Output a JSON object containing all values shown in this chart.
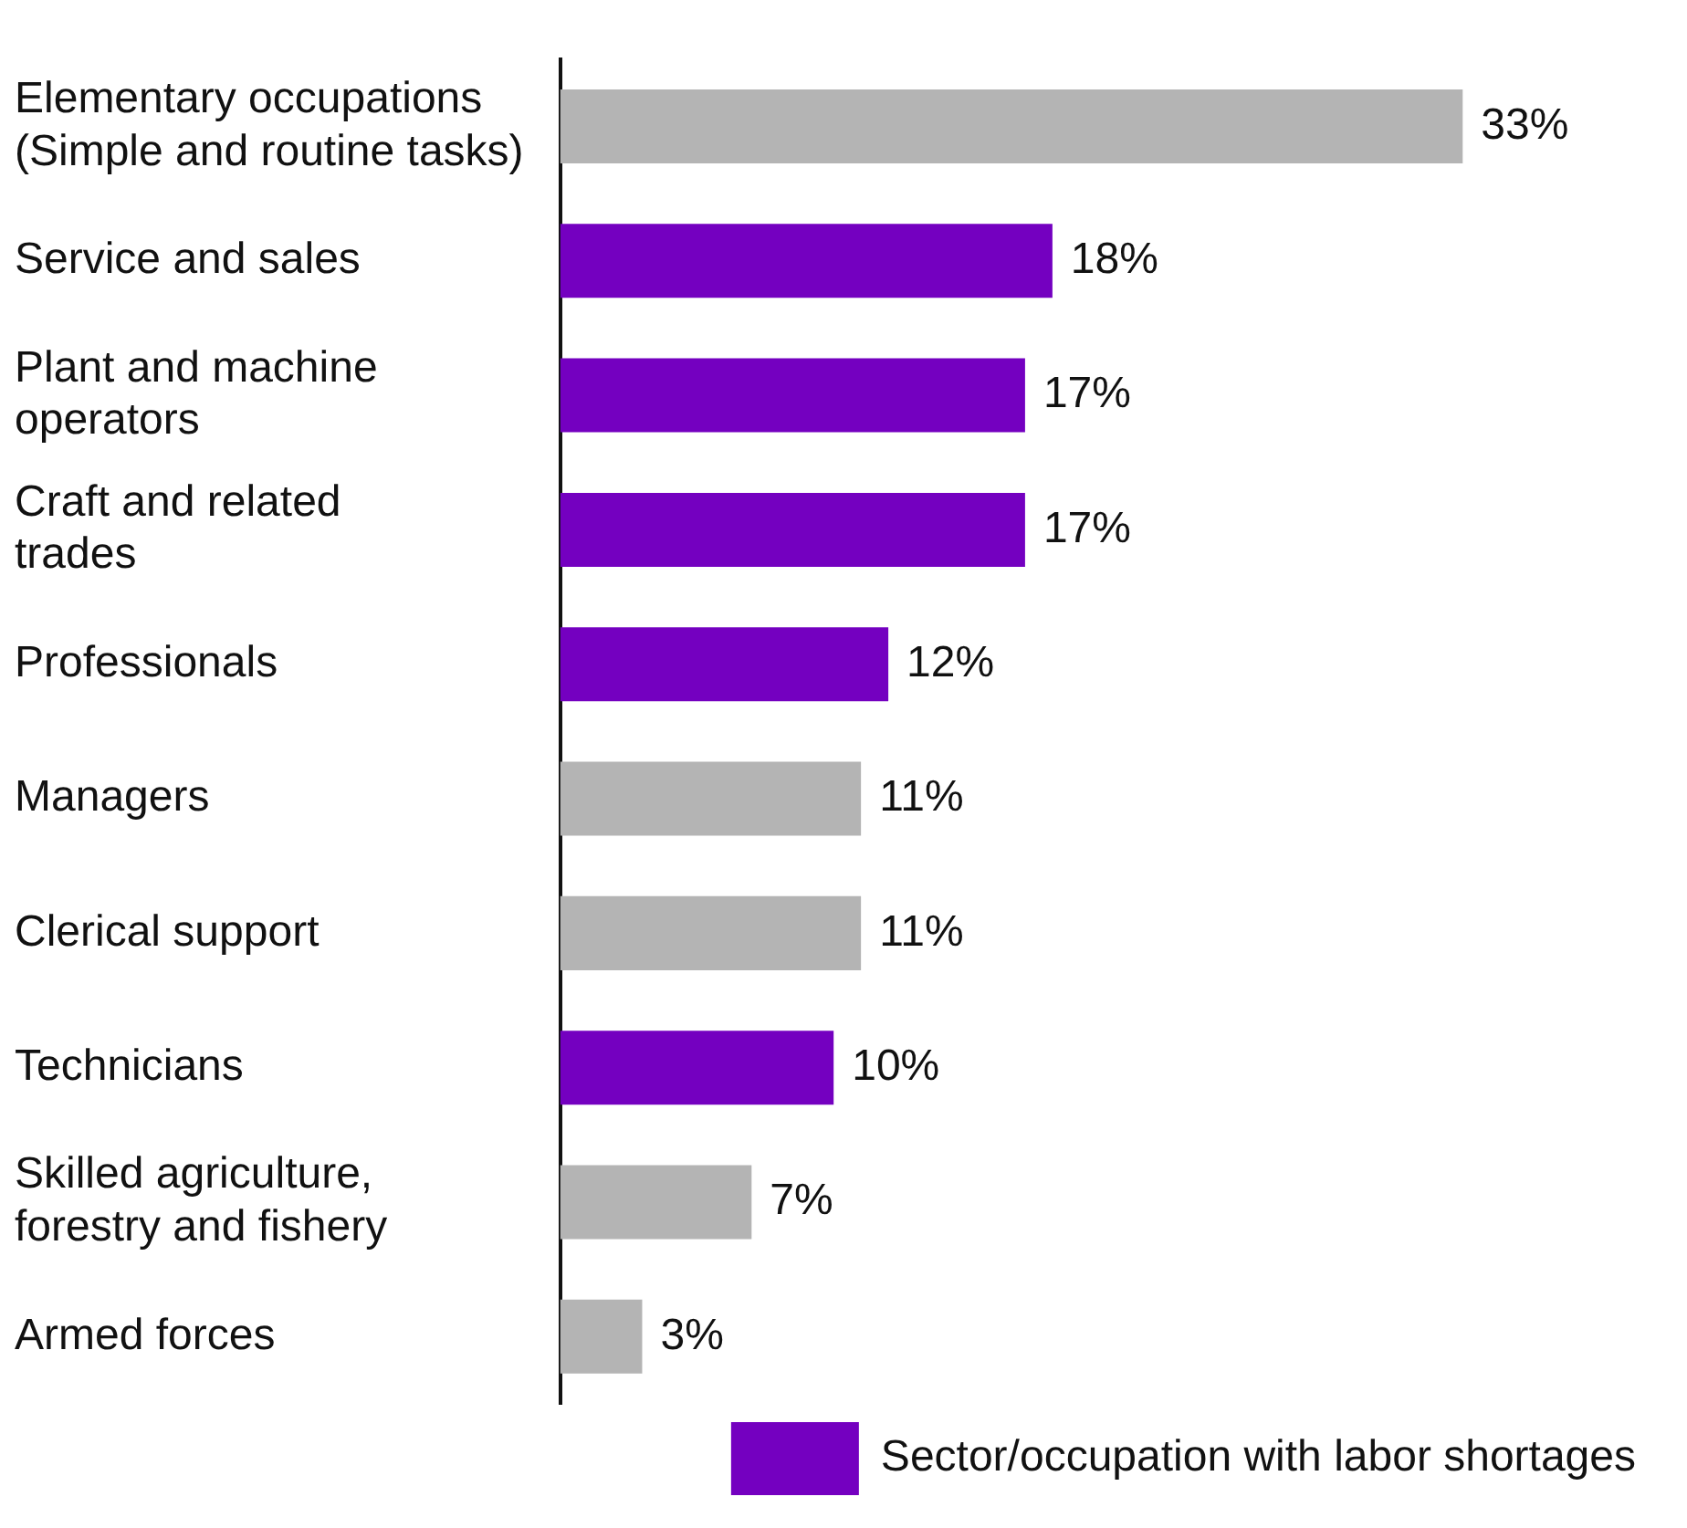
{
  "chart_data": {
    "type": "bar",
    "orientation": "horizontal",
    "categories": [
      "Elementary occupations\n(Simple and routine tasks)",
      "Service and sales",
      "Plant and machine\noperators",
      "Craft and related\ntrades",
      "Professionals",
      "Managers",
      "Clerical support",
      "Technicians",
      "Skilled agriculture,\nforestry and fishery",
      "Armed forces"
    ],
    "series": [
      {
        "name": "Sector/occupation with labor shortages",
        "color": "#7400c0",
        "values": [
          null,
          18,
          17,
          17,
          12,
          null,
          null,
          10,
          null,
          null
        ],
        "value_labels": [
          null,
          "18%",
          "17%",
          "17%",
          "12%",
          null,
          null,
          "10%",
          null,
          null
        ]
      },
      {
        "color": "#b4b4b4",
        "values": [
          33,
          null,
          null,
          null,
          null,
          11,
          11,
          null,
          7,
          3
        ],
        "value_labels": [
          "33%",
          null,
          null,
          null,
          null,
          "11%",
          "11%",
          null,
          "7%",
          "3%"
        ]
      }
    ],
    "legend": "bottom right"
  }
}
